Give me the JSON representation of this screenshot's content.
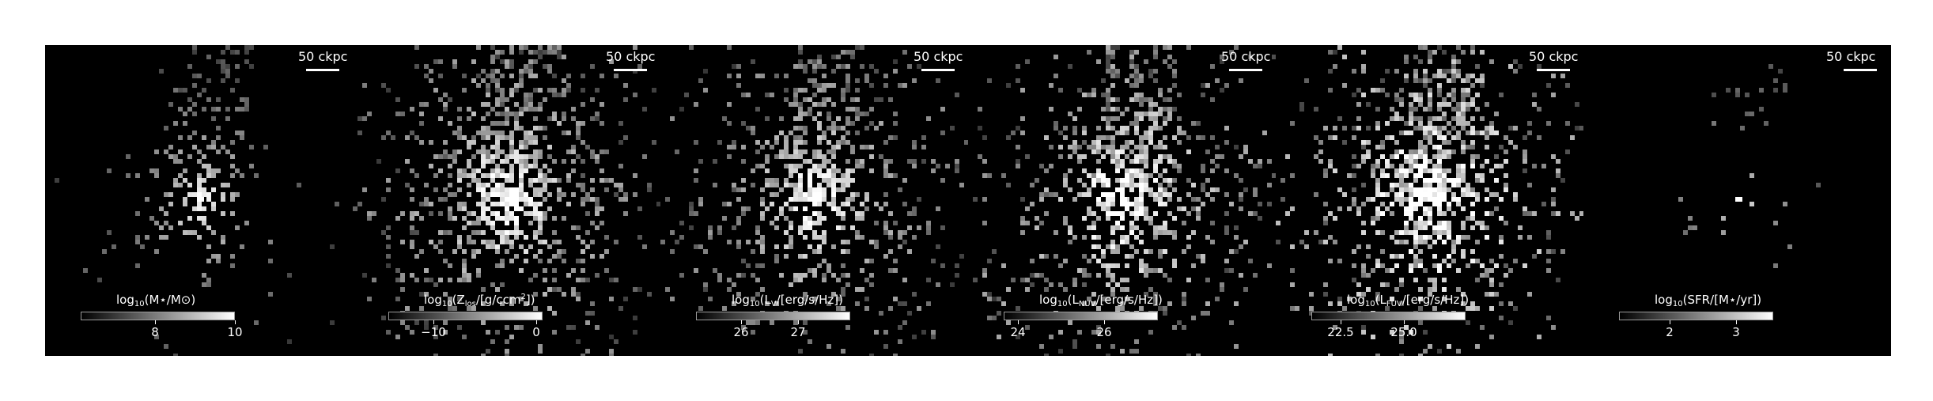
{
  "scalebar_label": "50 ckpc",
  "panels": [
    {
      "id": "stellar-mass",
      "quantity": "stellar mass",
      "cbar": {
        "title_pre": "log",
        "title_sub": "10",
        "title_post": "(M⋆/M⊙)",
        "ticks": [
          {
            "label": "8",
            "frac": 0.48
          },
          {
            "label": "10",
            "frac": 1.0
          }
        ]
      },
      "intensity": 0.25,
      "spread": 0.45,
      "density": 0.42
    },
    {
      "id": "metallicity",
      "quantity": "line-of-sight metal column density",
      "cbar": {
        "title_pre": "log",
        "title_sub": "10",
        "title_post": "(Z",
        "title_sub2": "los",
        "title_post2": "/[g/ccm",
        "title_sup": "2",
        "title_post3": "])",
        "ticks": [
          {
            "label": "−10",
            "frac": 0.29
          },
          {
            "label": "0",
            "frac": 0.96
          }
        ]
      },
      "intensity": 0.6,
      "spread": 0.9,
      "density": 0.7
    },
    {
      "id": "v-band",
      "quantity": "V-band luminosity",
      "cbar": {
        "title_pre": "log",
        "title_sub": "10",
        "title_post": "(L",
        "title_sub2": "V",
        "title_post2": "/[erg/s/Hz])",
        "ticks": [
          {
            "label": "26",
            "frac": 0.29
          },
          {
            "label": "27",
            "frac": 0.66
          }
        ]
      },
      "intensity": 0.55,
      "spread": 0.85,
      "density": 0.6
    },
    {
      "id": "nuv",
      "quantity": "near-UV luminosity",
      "cbar": {
        "title_pre": "log",
        "title_sub": "10",
        "title_post": "(L",
        "title_sub2": "NUV",
        "title_post2": "/[erg/s/Hz])",
        "ticks": [
          {
            "label": "24",
            "frac": 0.09
          },
          {
            "label": "26",
            "frac": 0.65
          }
        ]
      },
      "intensity": 0.7,
      "spread": 0.85,
      "density": 0.68
    },
    {
      "id": "fuv",
      "quantity": "far-UV luminosity",
      "cbar": {
        "title_pre": "log",
        "title_sub": "10",
        "title_post": "(L",
        "title_sub2": "FUV",
        "title_post2": "/[erg/s/Hz])",
        "ticks": [
          {
            "label": "22.5",
            "frac": 0.19
          },
          {
            "label": "25.0",
            "frac": 0.6
          }
        ]
      },
      "intensity": 0.85,
      "spread": 0.85,
      "density": 0.7
    },
    {
      "id": "sfr",
      "quantity": "star formation rate",
      "cbar": {
        "title_pre": "log",
        "title_sub": "10",
        "title_post": "(SFR/[M⋆/yr])",
        "ticks": [
          {
            "label": "2",
            "frac": 0.33
          },
          {
            "label": "3",
            "frac": 0.76
          }
        ]
      },
      "intensity": 0.15,
      "spread": 0.3,
      "density": 0.08
    }
  ]
}
